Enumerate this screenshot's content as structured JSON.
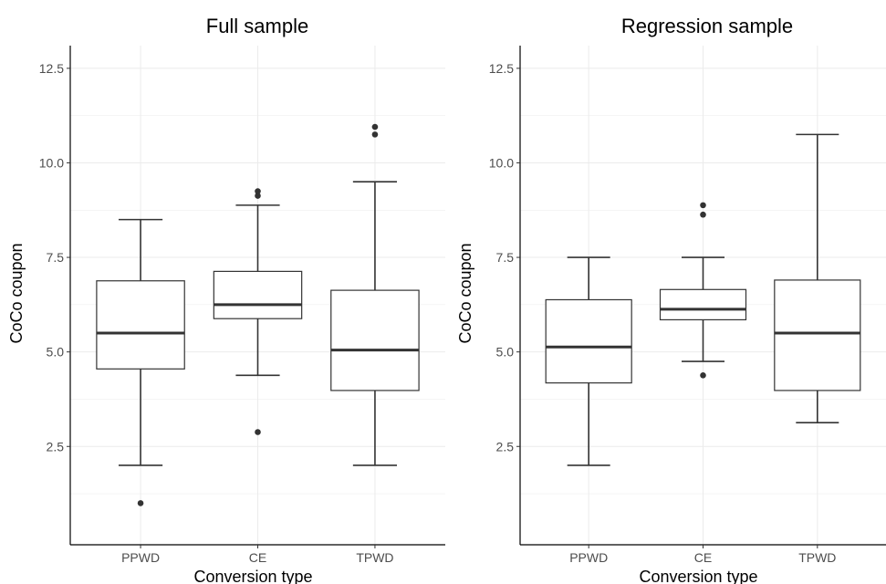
{
  "chart_data": [
    {
      "type": "box",
      "title": "Full sample",
      "xlabel": "Conversion type",
      "ylabel": "CoCo coupon",
      "categories": [
        "PPWD",
        "CE",
        "TPWD"
      ],
      "yticks": [
        2.5,
        5.0,
        7.5,
        10.0,
        12.5
      ],
      "ytick_labels": [
        "2.5",
        "5.0",
        "7.5",
        "10.0",
        "12.5"
      ],
      "ylim": [
        -0.1,
        13.1
      ],
      "grid": true,
      "boxes": [
        {
          "category": "PPWD",
          "whisker_low": 2.0,
          "q1": 4.55,
          "median": 5.5,
          "q3": 6.88,
          "whisker_high": 8.5,
          "outliers": [
            1.0
          ]
        },
        {
          "category": "CE",
          "whisker_low": 4.38,
          "q1": 5.88,
          "median": 6.25,
          "q3": 7.13,
          "whisker_high": 8.88,
          "outliers": [
            2.88,
            9.13,
            9.25
          ]
        },
        {
          "category": "TPWD",
          "whisker_low": 2.0,
          "q1": 3.98,
          "median": 5.05,
          "q3": 6.63,
          "whisker_high": 9.5,
          "outliers": [
            10.75,
            10.95
          ]
        }
      ]
    },
    {
      "type": "box",
      "title": "Regression sample",
      "xlabel": "Conversion type",
      "ylabel": "CoCo coupon",
      "categories": [
        "PPWD",
        "CE",
        "TPWD"
      ],
      "yticks": [
        2.5,
        5.0,
        7.5,
        10.0,
        12.5
      ],
      "ytick_labels": [
        "2.5",
        "5.0",
        "7.5",
        "10.0",
        "12.5"
      ],
      "ylim": [
        -0.1,
        13.1
      ],
      "grid": true,
      "boxes": [
        {
          "category": "PPWD",
          "whisker_low": 2.0,
          "q1": 4.18,
          "median": 5.13,
          "q3": 6.38,
          "whisker_high": 7.5,
          "outliers": []
        },
        {
          "category": "CE",
          "whisker_low": 4.75,
          "q1": 5.85,
          "median": 6.13,
          "q3": 6.65,
          "whisker_high": 7.5,
          "outliers": [
            4.38,
            8.63,
            8.88
          ]
        },
        {
          "category": "TPWD",
          "whisker_low": 3.13,
          "q1": 3.98,
          "median": 5.5,
          "q3": 6.9,
          "whisker_high": 10.75,
          "outliers": []
        }
      ]
    }
  ],
  "colors": {
    "box_stroke": "#333333",
    "median": "#333333",
    "outlier": "#333333",
    "grid": "#ebebeb",
    "axis": "#000000",
    "tick_label": "#4d4d4d"
  }
}
